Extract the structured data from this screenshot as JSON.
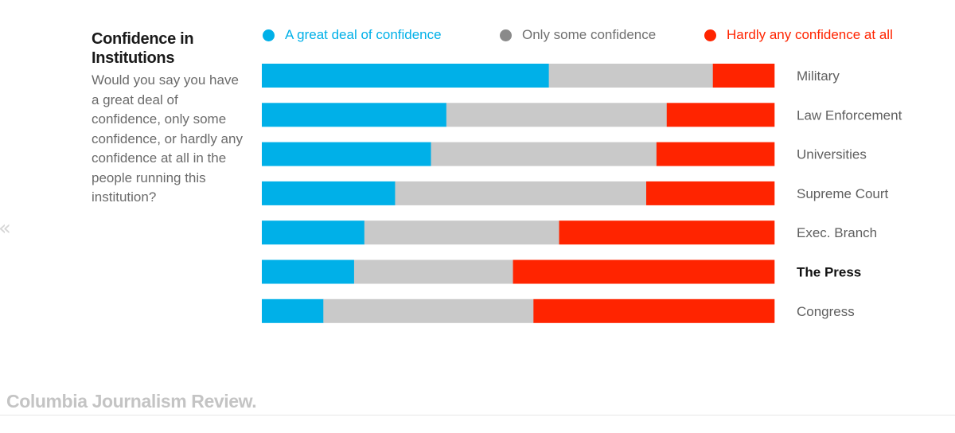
{
  "header": {
    "title": "Confidence in Institutions",
    "question": "Would you say you have a great deal of confidence, only some confidence, or hardly any confidence at all in the people running this institution?"
  },
  "footer": {
    "brand": "Columbia Journalism Review."
  },
  "colors": {
    "great_deal": "#00b0e8",
    "only_some": "#c9c9c9",
    "hardly_any": "#ff2400",
    "legend_only_some_text": "#707070",
    "legend_only_some_dot": "#8a8a8a",
    "category_label": "#5f5f5f",
    "highlight_label": "#111111"
  },
  "icons": {
    "side_arrow": "chevron-left-double-icon"
  },
  "chart_data": {
    "type": "bar",
    "orientation": "horizontal",
    "stacked": true,
    "normalized": true,
    "title": "Confidence in Institutions",
    "xlabel": "",
    "ylabel": "",
    "xlim": [
      0,
      100
    ],
    "grid": false,
    "legend_position": "top",
    "categories": [
      "Military",
      "Law Enforcement",
      "Universities",
      "Supreme Court",
      "Exec. Branch",
      "The Press",
      "Congress"
    ],
    "highlighted_category": "The Press",
    "series": [
      {
        "name": "A great deal of confidence",
        "color": "#00b0e8",
        "values": [
          56,
          36,
          33,
          26,
          20,
          18,
          12
        ]
      },
      {
        "name": "Only some confidence",
        "color": "#c9c9c9",
        "values": [
          32,
          43,
          44,
          49,
          38,
          31,
          41
        ]
      },
      {
        "name": "Hardly any confidence at all",
        "color": "#ff2400",
        "values": [
          12,
          21,
          23,
          25,
          42,
          51,
          47
        ]
      }
    ]
  }
}
